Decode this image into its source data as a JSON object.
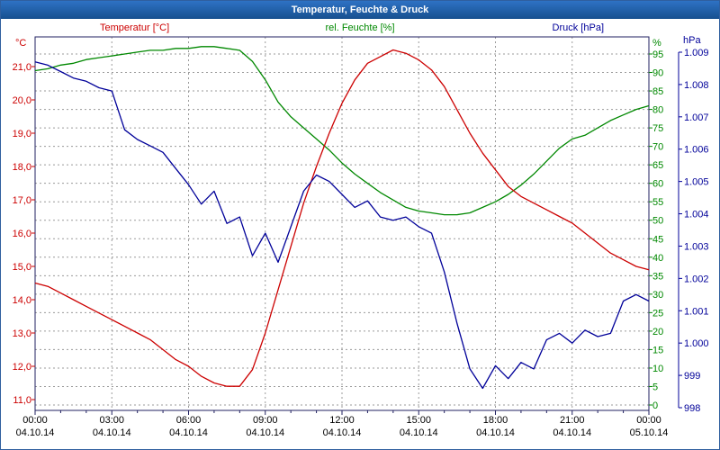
{
  "window": {
    "title": "Temperatur, Feuchte & Druck"
  },
  "chart_data": {
    "type": "line",
    "title": "Temperatur, Feuchte & Druck",
    "x_axis": "time of day, 04.10.14 00:00 to 05.10.14 00:00",
    "x_hours_step": 0.5,
    "x_range_hours": [
      0,
      24
    ],
    "grid": "dashed gray, vertical every 3h, horizontal every 5%",
    "x_ticks": [
      {
        "time": "00:00",
        "date": "04.10.14"
      },
      {
        "time": "03:00",
        "date": "04.10.14"
      },
      {
        "time": "06:00",
        "date": "04.10.14"
      },
      {
        "time": "09:00",
        "date": "04.10.14"
      },
      {
        "time": "12:00",
        "date": "04.10.14"
      },
      {
        "time": "15:00",
        "date": "04.10.14"
      },
      {
        "time": "18:00",
        "date": "04.10.14"
      },
      {
        "time": "21:00",
        "date": "04.10.14"
      },
      {
        "time": "00:00",
        "date": "05.10.14"
      }
    ],
    "axes": {
      "temperature": {
        "label": "°C",
        "color": "#cc0000",
        "min": 11,
        "max": 21,
        "tick_labels": [
          "21,0",
          "20,0",
          "19,0",
          "18,0",
          "17,0",
          "16,0",
          "15,0",
          "14,0",
          "13,0",
          "12,0",
          "11,0"
        ]
      },
      "humidity": {
        "label": "%",
        "color": "#008800",
        "min": 0,
        "max": 95,
        "tick_step": 5,
        "tick_labels": [
          "95",
          "90",
          "85",
          "80",
          "75",
          "70",
          "65",
          "60",
          "55",
          "50",
          "45",
          "40",
          "35",
          "30",
          "25",
          "20",
          "15",
          "10",
          "5",
          "0"
        ]
      },
      "pressure": {
        "label": "hPa",
        "color": "#000099",
        "min": 998,
        "max": 1009,
        "tick_labels": [
          "1.009",
          "1.008",
          "1.007",
          "1.006",
          "1.005",
          "1.004",
          "1.003",
          "1.002",
          "1.001",
          "1.000",
          "999",
          "998"
        ]
      }
    },
    "series": [
      {
        "name": "Temperatur [°C]",
        "axis": "temperature",
        "color": "#cc0000",
        "values": [
          14.5,
          14.4,
          14.2,
          14.0,
          13.8,
          13.6,
          13.4,
          13.2,
          13.0,
          12.8,
          12.5,
          12.2,
          12.0,
          11.7,
          11.5,
          11.4,
          11.4,
          11.9,
          13.0,
          14.3,
          15.6,
          16.9,
          18.0,
          19.0,
          19.9,
          20.6,
          21.1,
          21.3,
          21.5,
          21.4,
          21.2,
          20.9,
          20.4,
          19.7,
          19.0,
          18.4,
          17.9,
          17.4,
          17.1,
          16.9,
          16.7,
          16.5,
          16.3,
          16.0,
          15.7,
          15.4,
          15.2,
          15.0,
          14.9
        ]
      },
      {
        "name": "rel. Feuchte [%]",
        "axis": "humidity",
        "color": "#008800",
        "values": [
          90.5,
          91,
          92,
          92.5,
          93.5,
          94,
          94.5,
          95,
          95.5,
          96,
          96,
          96.5,
          96.5,
          97,
          97,
          96.5,
          96,
          93,
          88,
          82,
          78,
          75,
          72,
          69,
          65.5,
          62.5,
          60,
          57.5,
          55.5,
          53.5,
          52.5,
          52,
          51.5,
          51.5,
          52,
          53.5,
          55,
          57,
          59.5,
          62.5,
          66,
          69.5,
          72,
          73,
          75,
          77,
          78.5,
          80,
          81
        ]
      },
      {
        "name": "Druck [hPa]",
        "axis": "pressure",
        "color": "#000099",
        "values": [
          1008.7,
          1008.6,
          1008.4,
          1008.2,
          1008.1,
          1007.9,
          1007.8,
          1006.6,
          1006.3,
          1006.1,
          1005.9,
          1005.4,
          1004.9,
          1004.3,
          1004.7,
          1003.7,
          1003.9,
          1002.7,
          1003.4,
          1002.5,
          1003.6,
          1004.7,
          1005.2,
          1005.0,
          1004.6,
          1004.2,
          1004.4,
          1003.9,
          1003.8,
          1003.9,
          1003.6,
          1003.4,
          1002.2,
          1000.6,
          999.2,
          998.6,
          999.3,
          998.9,
          999.4,
          999.2,
          1000.1,
          1000.3,
          1000.0,
          1000.4,
          1000.2,
          1000.3,
          1001.3,
          1001.5,
          1001.3
        ]
      }
    ]
  }
}
